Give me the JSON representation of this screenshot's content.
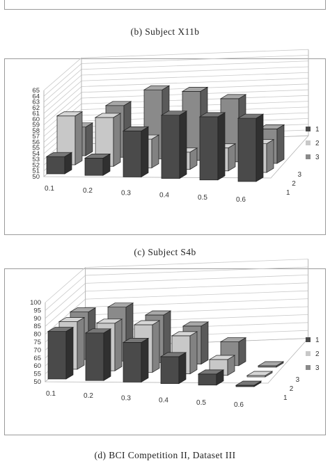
{
  "captions": {
    "b": "(b)  Subject  X11b",
    "c": "(c)  Subject  S4b",
    "d": "(d)  BCI Competition II, Dataset III"
  },
  "colors": {
    "series1": "#4a4a4a",
    "series2": "#c8c8c8",
    "series3": "#8a8a8a"
  },
  "chart_data": [
    {
      "panel": "c",
      "type": "bar",
      "categories": [
        "0.1",
        "0.2",
        "0.3",
        "0.4",
        "0.5",
        "0.6"
      ],
      "depth_labels": [
        "1",
        "2",
        "3"
      ],
      "yticks": [
        "50",
        "51",
        "52",
        "53",
        "54",
        "55",
        "56",
        "57",
        "58",
        "59",
        "60",
        "61",
        "62",
        "63",
        "64",
        "65"
      ],
      "ylim": [
        50,
        65
      ],
      "series": [
        {
          "name": "1",
          "values": [
            53,
            53,
            58,
            61,
            61,
            61
          ]
        },
        {
          "name": "2",
          "values": [
            58.5,
            58.5,
            55,
            53,
            54,
            55
          ]
        },
        {
          "name": "3",
          "values": [
            55,
            59,
            62,
            62,
            61,
            56
          ]
        }
      ],
      "legend": [
        "1",
        "2",
        "3"
      ],
      "legend_position": "right",
      "grid": true
    },
    {
      "panel": "d",
      "type": "bar",
      "categories": [
        "0.1",
        "0.2",
        "0.3",
        "0.4",
        "0.5",
        "0.6"
      ],
      "depth_labels": [
        "1",
        "2",
        "3"
      ],
      "yticks": [
        "50",
        "55",
        "60",
        "65",
        "70",
        "75",
        "80",
        "85",
        "90",
        "95",
        "100"
      ],
      "ylim": [
        50,
        100
      ],
      "series": [
        {
          "name": "1",
          "values": [
            80,
            80,
            75,
            67,
            57,
            50
          ]
        },
        {
          "name": "2",
          "values": [
            80,
            80,
            80,
            74,
            60,
            50
          ]
        },
        {
          "name": "3",
          "values": [
            80,
            84,
            80,
            74,
            65,
            50
          ]
        }
      ],
      "legend": [
        "1",
        "2",
        "3"
      ],
      "legend_position": "right",
      "grid": true
    }
  ]
}
